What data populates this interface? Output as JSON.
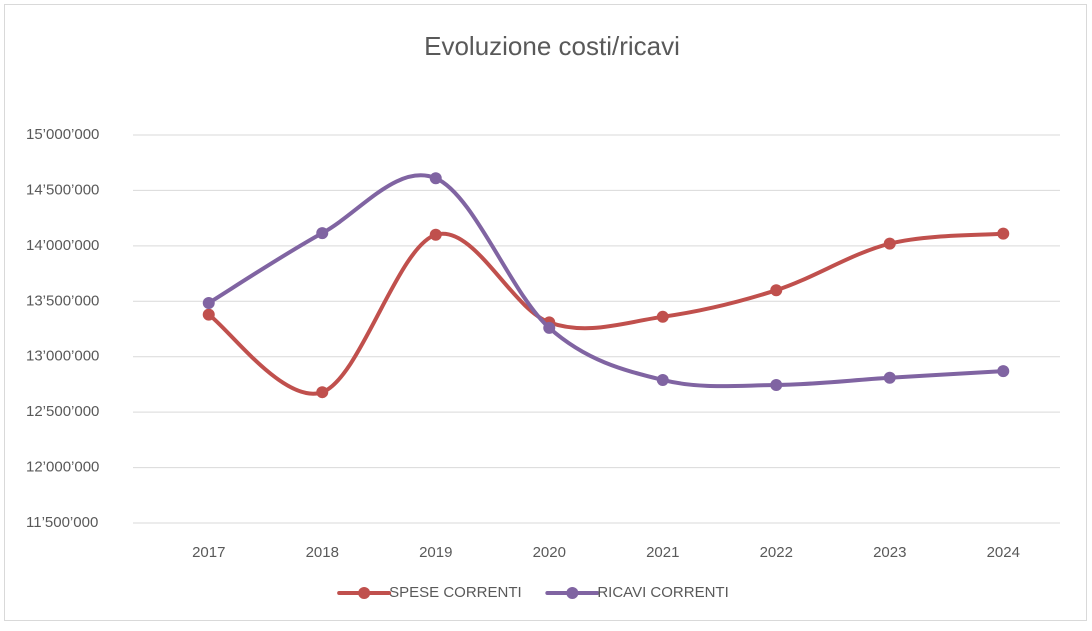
{
  "chart_data": {
    "type": "line",
    "title": "Evoluzione costi/ricavi",
    "categories": [
      "2017",
      "2018",
      "2019",
      "2020",
      "2021",
      "2022",
      "2023",
      "2024"
    ],
    "series": [
      {
        "name": "SPESE CORRENTI",
        "color": "#c0504d",
        "values": [
          13380000,
          12680000,
          14100000,
          13310000,
          13360000,
          13600000,
          14020000,
          14110000
        ]
      },
      {
        "name": "RICAVI CORRENTI",
        "color": "#8064a2",
        "values": [
          13485000,
          14115000,
          14610000,
          13260000,
          12790000,
          12745000,
          12810000,
          12870000
        ]
      }
    ],
    "ylim": [
      11500000,
      15000000
    ],
    "yticks": [
      {
        "value": 11500000,
        "label": "11’500’000"
      },
      {
        "value": 12000000,
        "label": "12’000’000"
      },
      {
        "value": 12500000,
        "label": "12’500’000"
      },
      {
        "value": 13000000,
        "label": "13’000’000"
      },
      {
        "value": 13500000,
        "label": "13’500’000"
      },
      {
        "value": 14000000,
        "label": "14’000’000"
      },
      {
        "value": 14500000,
        "label": "14’500’000"
      },
      {
        "value": 15000000,
        "label": "15’000’000"
      }
    ],
    "grid": true,
    "legend": "bottom"
  }
}
